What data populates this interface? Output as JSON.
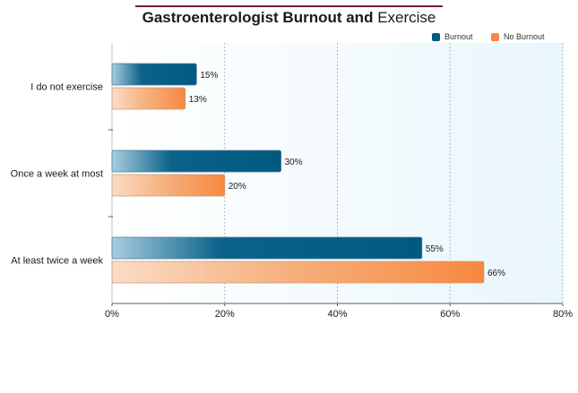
{
  "chart_data": {
    "type": "bar",
    "orientation": "horizontal",
    "title": "Gastroenterologist Burnout and Exercise",
    "title_bold_part": "Gastroenterologist Burnout and",
    "title_regular_part": "Exercise",
    "categories": [
      "I do not exercise",
      "Once a week at most",
      "At least twice a week"
    ],
    "series": [
      {
        "name": "Burnout",
        "values": [
          15,
          30,
          55
        ],
        "labels": [
          "15%",
          "30%",
          "55%"
        ],
        "color": "#005a80"
      },
      {
        "name": "No Burnout",
        "values": [
          13,
          20,
          66
        ],
        "labels": [
          "13%",
          "20%",
          "66%"
        ],
        "color": "#f7883f"
      }
    ],
    "xlim": [
      0,
      80
    ],
    "x_ticks": [
      0,
      20,
      40,
      60,
      80
    ],
    "x_tick_labels": [
      "0%",
      "20%",
      "40%",
      "60%",
      "80%"
    ],
    "grid": true,
    "legend_position": "top-right",
    "xlabel": "",
    "ylabel": ""
  }
}
